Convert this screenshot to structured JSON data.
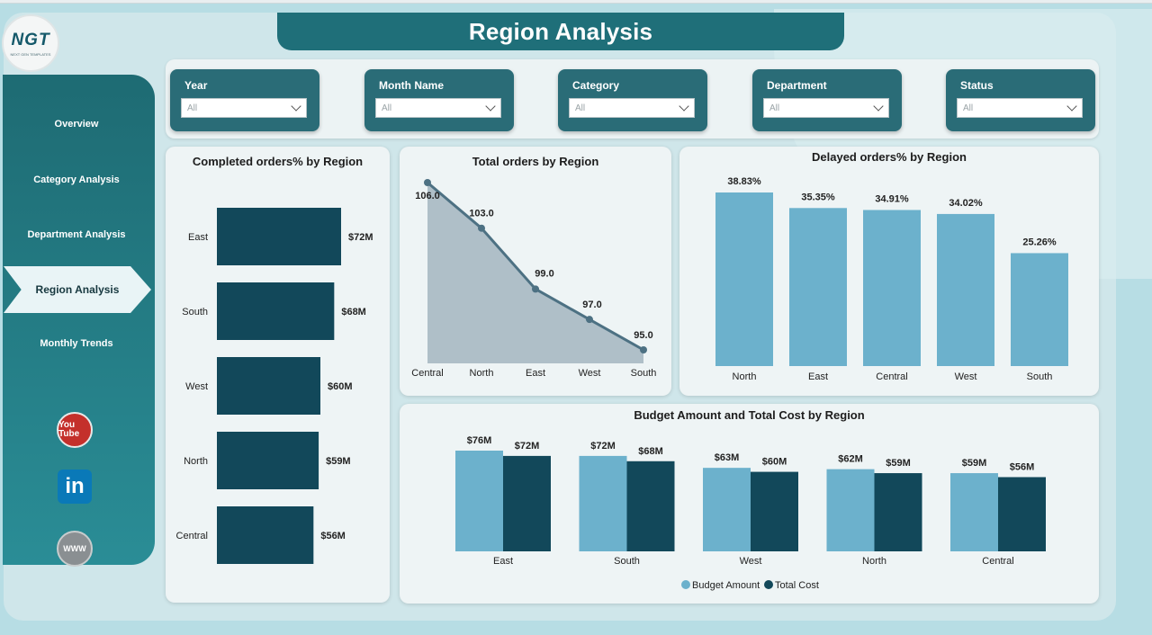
{
  "header": {
    "title": "Region Analysis"
  },
  "logo": {
    "text": "NGT",
    "subtitle": "NEXT GEN TEMPLATES"
  },
  "nav": {
    "items": [
      "Overview",
      "Category Analysis",
      "Department Analysis",
      "Region Analysis",
      "Monthly Trends"
    ],
    "active": "Region Analysis"
  },
  "social": {
    "youtube": "You Tube",
    "linkedin": "in",
    "web": "WWW"
  },
  "filters": [
    {
      "label": "Year",
      "value": "All"
    },
    {
      "label": "Month Name",
      "value": "All"
    },
    {
      "label": "Category",
      "value": "All"
    },
    {
      "label": "Department",
      "value": "All"
    },
    {
      "label": "Status",
      "value": "All"
    }
  ],
  "colors": {
    "dark": "#12485a",
    "light": "#6cb1cc",
    "area": "#a7b9c3",
    "line": "#4d7183"
  },
  "chart_data": [
    {
      "type": "bar",
      "orientation": "horizontal",
      "title": "Completed orders% by Region",
      "categories": [
        "East",
        "South",
        "West",
        "North",
        "Central"
      ],
      "values": [
        72,
        68,
        60,
        59,
        56
      ],
      "labels": [
        "$72M",
        "$68M",
        "$60M",
        "$59M",
        "$56M"
      ],
      "xlim": [
        0,
        80
      ]
    },
    {
      "type": "area",
      "title": "Total orders by Region",
      "categories": [
        "Central",
        "North",
        "East",
        "West",
        "South"
      ],
      "values": [
        106.0,
        103.0,
        99.0,
        97.0,
        95.0
      ],
      "labels": [
        "106.0",
        "103.0",
        "99.0",
        "97.0",
        "95.0"
      ],
      "ylim": [
        90,
        106
      ]
    },
    {
      "type": "bar",
      "title": "Delayed orders% by Region",
      "categories": [
        "North",
        "East",
        "Central",
        "West",
        "South"
      ],
      "values": [
        38.83,
        35.35,
        34.91,
        34.02,
        25.26
      ],
      "labels": [
        "38.83%",
        "35.35%",
        "34.91%",
        "34.02%",
        "25.26%"
      ],
      "ylim": [
        0,
        40
      ]
    },
    {
      "type": "bar",
      "title": "Budget Amount and Total Cost by Region",
      "categories": [
        "East",
        "South",
        "West",
        "North",
        "Central"
      ],
      "series": [
        {
          "name": "Budget Amount",
          "values": [
            76,
            72,
            63,
            62,
            59
          ],
          "labels": [
            "$76M",
            "$72M",
            "$63M",
            "$62M",
            "$59M"
          ]
        },
        {
          "name": "Total Cost",
          "values": [
            72,
            68,
            60,
            59,
            56
          ],
          "labels": [
            "$72M",
            "$68M",
            "$60M",
            "$59M",
            "$56M"
          ]
        }
      ],
      "ylim": [
        0,
        80
      ],
      "legend": "bottom-center"
    }
  ]
}
